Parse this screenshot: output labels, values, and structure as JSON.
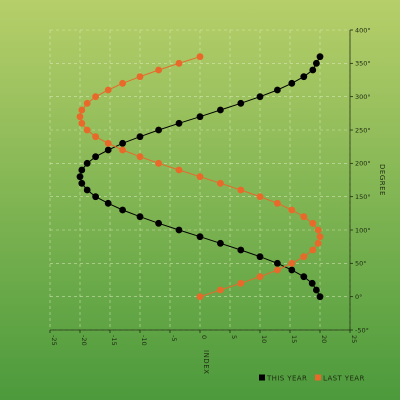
{
  "chart_data": {
    "type": "line",
    "title": "",
    "xlabel": "INDEX",
    "ylabel": "DEGREE",
    "xlim": [
      -25,
      25
    ],
    "ylim": [
      -50,
      400
    ],
    "x_ticks": [
      -25,
      -20,
      -15,
      -10,
      -5,
      0,
      5,
      10,
      15,
      20,
      25
    ],
    "y_ticks": [
      -50,
      0,
      50,
      100,
      150,
      200,
      250,
      300,
      350,
      400
    ],
    "y_tick_suffix": "°",
    "grid": true,
    "legend_position": "bottom-right",
    "series": [
      {
        "name": "THIS YEAR",
        "color": "#000000",
        "points": [
          [
            20,
            0
          ],
          [
            19.4,
            10
          ],
          [
            18.7,
            20
          ],
          [
            17.3,
            30
          ],
          [
            15.3,
            40
          ],
          [
            12.9,
            50
          ],
          [
            10,
            60
          ],
          [
            6.8,
            70
          ],
          [
            3.4,
            80
          ],
          [
            0,
            90
          ],
          [
            -3.5,
            100
          ],
          [
            -6.9,
            110
          ],
          [
            -10,
            120
          ],
          [
            -12.9,
            130
          ],
          [
            -15.3,
            140
          ],
          [
            -17.4,
            150
          ],
          [
            -18.8,
            160
          ],
          [
            -19.7,
            170
          ],
          [
            -20,
            180
          ],
          [
            -19.7,
            190
          ],
          [
            -18.8,
            200
          ],
          [
            -17.4,
            210
          ],
          [
            -15.3,
            220
          ],
          [
            -12.9,
            230
          ],
          [
            -10,
            240
          ],
          [
            -6.9,
            250
          ],
          [
            -3.5,
            260
          ],
          [
            0,
            270
          ],
          [
            3.4,
            280
          ],
          [
            6.8,
            290
          ],
          [
            10,
            300
          ],
          [
            12.9,
            310
          ],
          [
            15.3,
            320
          ],
          [
            17.3,
            330
          ],
          [
            18.8,
            340
          ],
          [
            19.4,
            350
          ],
          [
            20,
            360
          ]
        ]
      },
      {
        "name": "LAST YEAR",
        "color": "#e8692a",
        "points": [
          [
            0,
            0
          ],
          [
            3.4,
            10
          ],
          [
            6.8,
            20
          ],
          [
            10,
            30
          ],
          [
            12.9,
            40
          ],
          [
            15.3,
            50
          ],
          [
            17.3,
            60
          ],
          [
            18.8,
            70
          ],
          [
            19.7,
            80
          ],
          [
            20,
            90
          ],
          [
            19.7,
            100
          ],
          [
            18.8,
            110
          ],
          [
            17.3,
            120
          ],
          [
            15.3,
            130
          ],
          [
            12.9,
            140
          ],
          [
            10,
            150
          ],
          [
            6.8,
            160
          ],
          [
            3.4,
            170
          ],
          [
            0,
            180
          ],
          [
            -3.5,
            190
          ],
          [
            -6.9,
            200
          ],
          [
            -10,
            210
          ],
          [
            -12.9,
            220
          ],
          [
            -15.3,
            230
          ],
          [
            -17.4,
            240
          ],
          [
            -18.8,
            250
          ],
          [
            -19.7,
            260
          ],
          [
            -20,
            270
          ],
          [
            -19.7,
            280
          ],
          [
            -18.8,
            290
          ],
          [
            -17.4,
            300
          ],
          [
            -15.3,
            310
          ],
          [
            -12.9,
            320
          ],
          [
            -10,
            330
          ],
          [
            -6.9,
            340
          ],
          [
            -3.5,
            350
          ],
          [
            0,
            360
          ]
        ]
      }
    ]
  },
  "colors": {
    "background_top": "#b6cf6a",
    "background_bottom": "#4c9a3c",
    "grid": "#e8f2c8",
    "axis": "#1f2a12"
  }
}
